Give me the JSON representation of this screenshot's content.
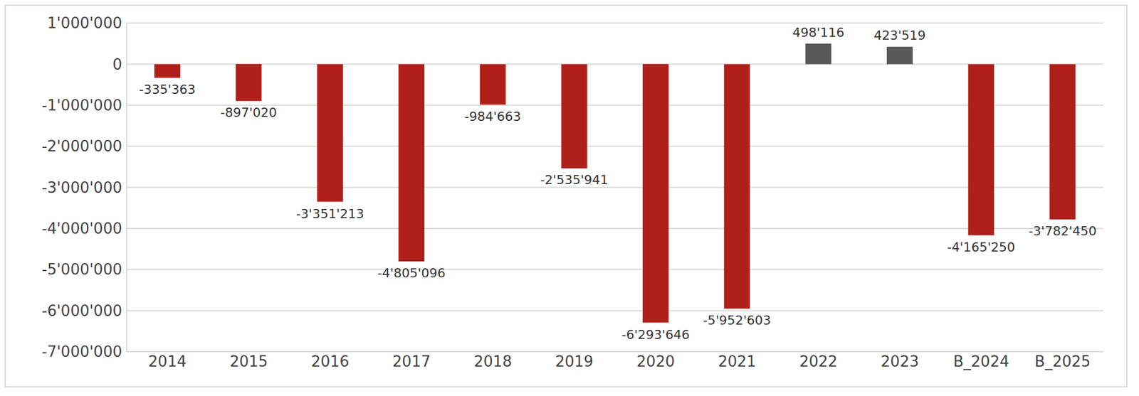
{
  "chart_data": {
    "type": "bar",
    "categories": [
      "2014",
      "2015",
      "2016",
      "2017",
      "2018",
      "2019",
      "2020",
      "2021",
      "2022",
      "2023",
      "B_2024",
      "B_2025"
    ],
    "values": [
      -335363,
      -897020,
      -3351213,
      -4805096,
      -984663,
      -2535941,
      -6293646,
      -5952603,
      498116,
      423519,
      -4165250,
      -3782450
    ],
    "value_labels": [
      "-335'363",
      "-897'020",
      "-3'351'213",
      "-4'805'096",
      "-984'663",
      "-2'535'941",
      "-6'293'646",
      "-5'952'603",
      "498'116",
      "423'519",
      "-4'165'250",
      "-3'782'450"
    ],
    "colors": [
      "#b0201a",
      "#b0201a",
      "#b0201a",
      "#b0201a",
      "#b0201a",
      "#b0201a",
      "#b0201a",
      "#b0201a",
      "#595959",
      "#595959",
      "#b0201a",
      "#b0201a"
    ],
    "ylim": [
      -7000000,
      1000000
    ],
    "yticks": [
      {
        "value": -7000000,
        "label": "-7'000'000"
      },
      {
        "value": -6000000,
        "label": "-6'000'000"
      },
      {
        "value": -5000000,
        "label": "-5'000'000"
      },
      {
        "value": -4000000,
        "label": "-4'000'000"
      },
      {
        "value": -3000000,
        "label": "-3'000'000"
      },
      {
        "value": -2000000,
        "label": "-2'000'000"
      },
      {
        "value": -1000000,
        "label": "-1'000'000"
      },
      0,
      {
        "value": 1000000,
        "label": "1'000'000"
      }
    ],
    "grid": true,
    "data_labels": true
  }
}
